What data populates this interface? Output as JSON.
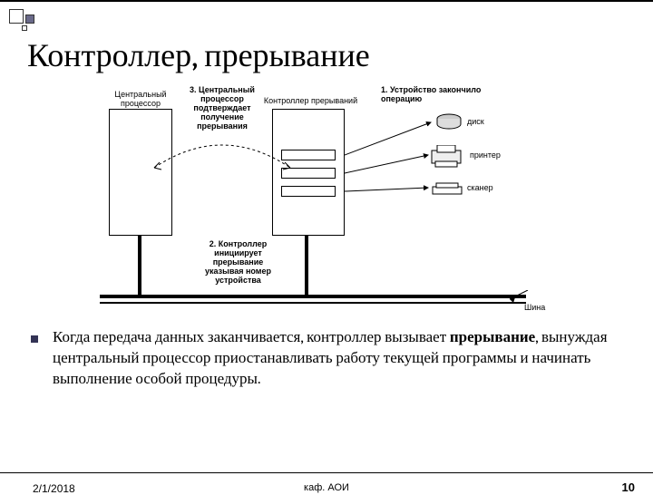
{
  "title": "Контроллер, прерывание",
  "diagram": {
    "labels": {
      "cpu": "Центральный\nпроцессор",
      "ack": "3. Центральный\nпроцессор\nподтверждает\nполучение\nпрерывания",
      "ctrl": "Контроллер прерываний",
      "device_op": "1. Устройство закончило\nоперацию",
      "disk": "диск",
      "printer": "принтер",
      "scanner": "сканер",
      "init": "2. Контроллер\nинициирует\nпрерывание\nуказывая номер\nустройства",
      "bus": "Шина"
    },
    "colors": {
      "line": "#000000",
      "bg": "#ffffff",
      "label": "#000000"
    }
  },
  "body_text": {
    "p1_prefix": "Когда передача данных заканчивается, контроллер вызывает ",
    "p1_bold": "прерывание",
    "p1_suffix": ", вынуждая центральный процессор приостанавливать работу текущей программы и начинать выполнение особой процедуры."
  },
  "footer": {
    "date": "2/1/2018",
    "center": "каф. АОИ",
    "page": "10"
  }
}
